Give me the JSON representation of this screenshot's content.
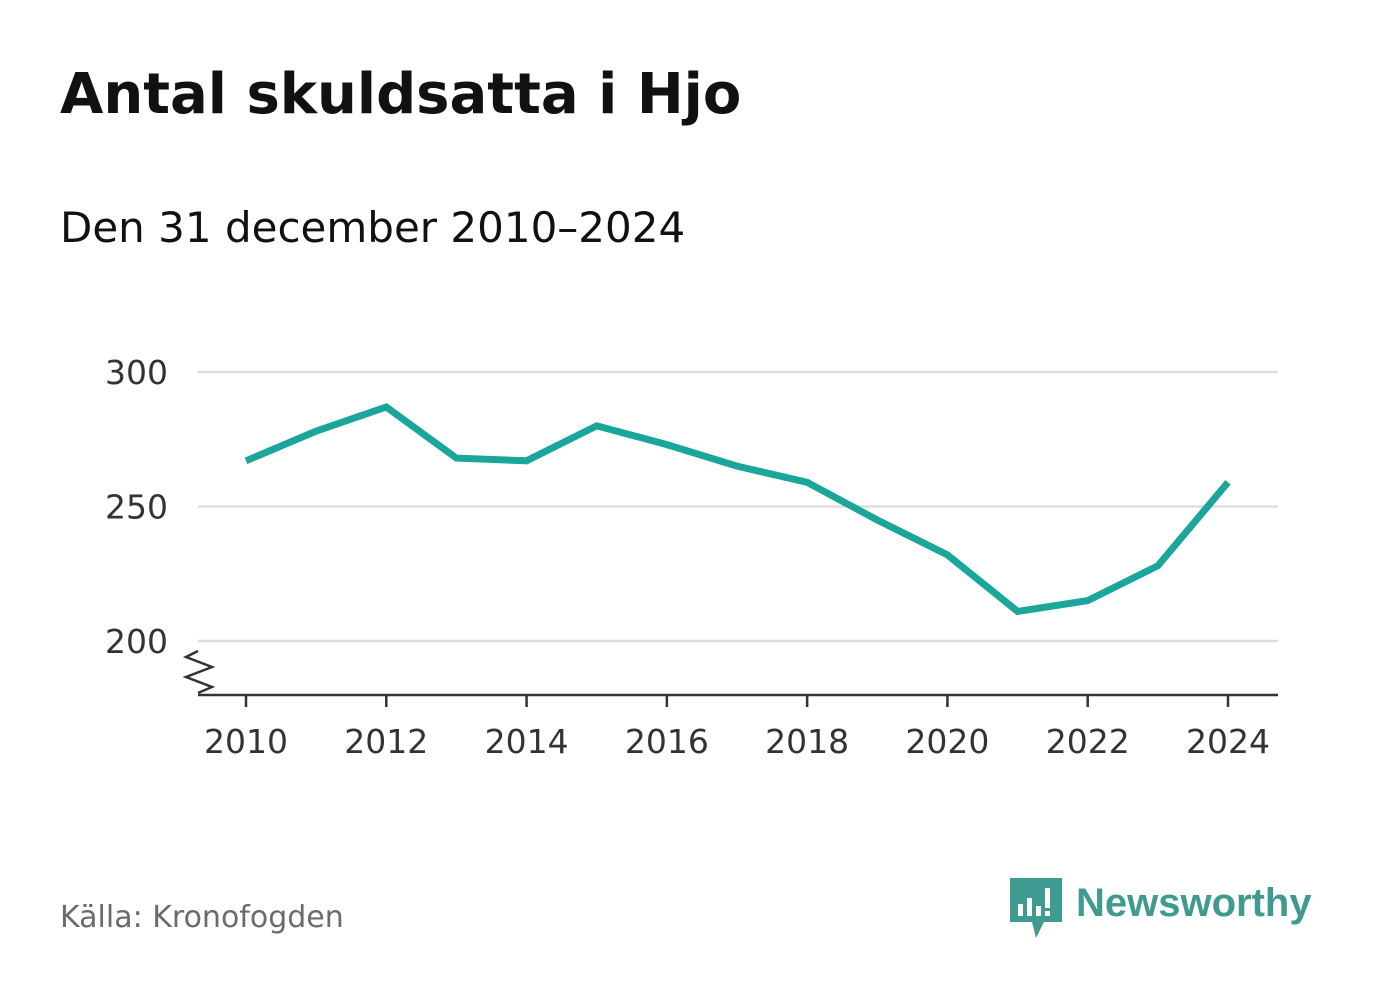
{
  "title": "Antal skuldsatta i Hjo",
  "subtitle": "Den 31 december 2010–2024",
  "source": "Källa: Kronofogden",
  "brand": "Newsworthy",
  "colors": {
    "line": "#1aa69b",
    "grid": "#dddddd",
    "axis": "#333333",
    "brand": "#3f9b8f"
  },
  "chart_data": {
    "type": "line",
    "title": "Antal skuldsatta i Hjo",
    "xlabel": "",
    "ylabel": "",
    "x": [
      2010,
      2011,
      2012,
      2013,
      2014,
      2015,
      2016,
      2017,
      2018,
      2019,
      2020,
      2021,
      2022,
      2023,
      2024
    ],
    "series": [
      {
        "name": "Antal skuldsatta",
        "values": [
          267,
          278,
          287,
          268,
          267,
          280,
          273,
          265,
          259,
          245,
          232,
          211,
          215,
          228,
          259
        ]
      }
    ],
    "xlim": [
      2010,
      2024
    ],
    "ylim": [
      180,
      300
    ],
    "yticks": [
      200,
      250,
      300
    ],
    "xticks": [
      2010,
      2012,
      2014,
      2016,
      2018,
      2020,
      2022,
      2024
    ],
    "grid": true,
    "axis_break": true
  }
}
